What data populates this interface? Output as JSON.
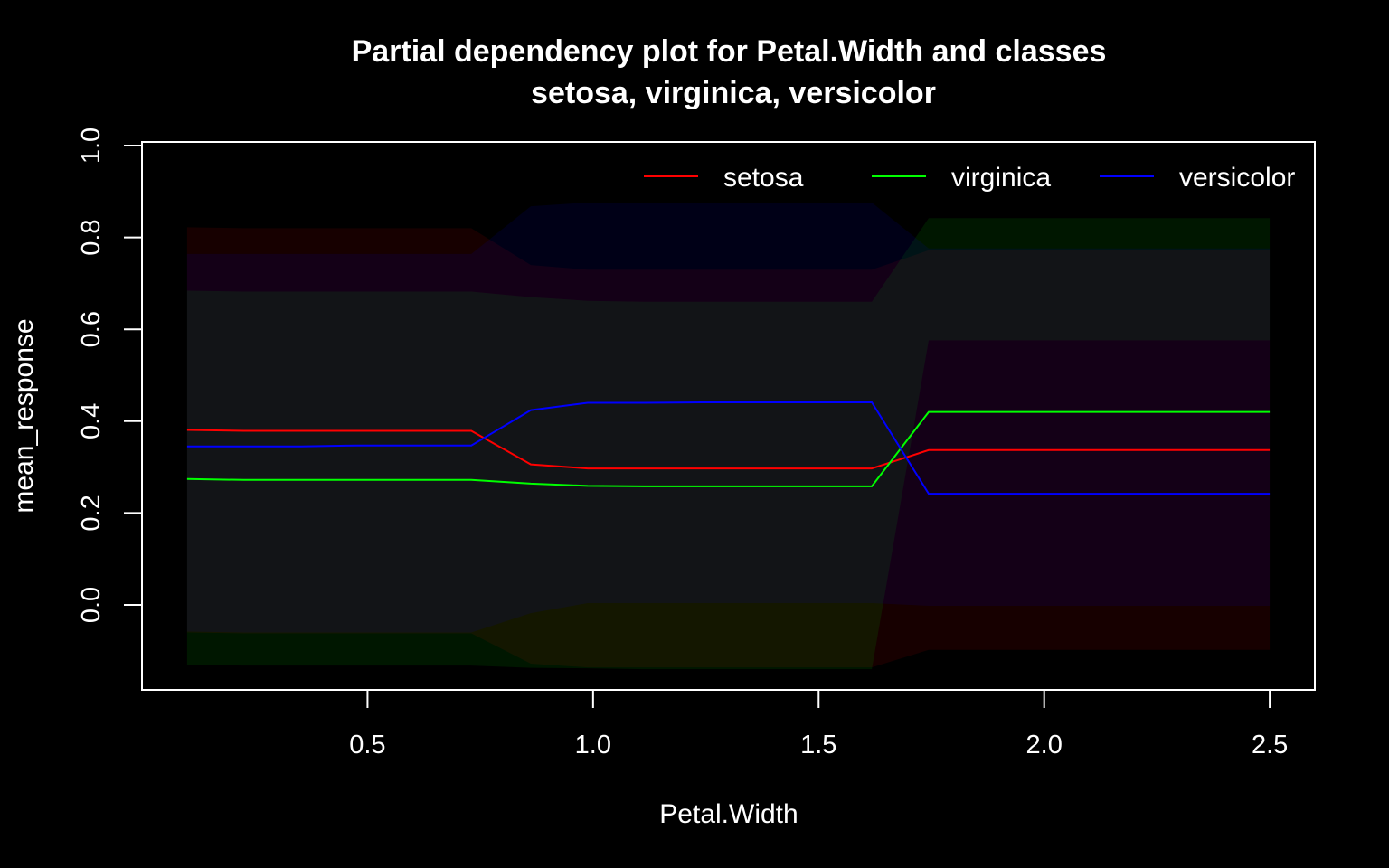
{
  "chart_data": {
    "type": "line",
    "title_line1": "Partial dependency plot for Petal.Width and classes",
    "title_line2": "setosa, virginica, versicolor",
    "xlabel": "Petal.Width",
    "ylabel": "mean_response",
    "xlim": [
      0.0,
      2.6
    ],
    "ylim": [
      -0.18,
      1.0
    ],
    "x_ticks": [
      0.5,
      1.0,
      1.5,
      2.0,
      2.5
    ],
    "x_tick_labels": [
      "0.5",
      "1.0",
      "1.5",
      "2.0",
      "2.5"
    ],
    "y_ticks": [
      0.0,
      0.2,
      0.4,
      0.6,
      0.8,
      1.0
    ],
    "y_tick_labels": [
      "0.0",
      "0.2",
      "0.4",
      "0.6",
      "0.8",
      "1.0"
    ],
    "background": "#000000",
    "foreground": "#ffffff",
    "legend_position": "top-right",
    "x": [
      0.1,
      0.226,
      0.352,
      0.478,
      0.604,
      0.73,
      0.862,
      0.988,
      1.114,
      1.24,
      1.366,
      1.492,
      1.618,
      1.744,
      1.87,
      1.996,
      2.122,
      2.248,
      2.374,
      2.5
    ],
    "series": [
      {
        "name": "setosa",
        "color": "#ff0000",
        "band_color": "#ff0000",
        "values": [
          0.381,
          0.379,
          0.379,
          0.379,
          0.379,
          0.379,
          0.306,
          0.297,
          0.297,
          0.297,
          0.297,
          0.297,
          0.297,
          0.337,
          0.337,
          0.337,
          0.337,
          0.337,
          0.337,
          0.337
        ],
        "lower": [
          -0.06,
          -0.062,
          -0.062,
          -0.062,
          -0.062,
          -0.062,
          -0.128,
          -0.136,
          -0.136,
          -0.136,
          -0.136,
          -0.136,
          -0.136,
          -0.098,
          -0.098,
          -0.098,
          -0.098,
          -0.098,
          -0.098,
          -0.098
        ],
        "upper": [
          0.822,
          0.82,
          0.82,
          0.82,
          0.82,
          0.82,
          0.74,
          0.73,
          0.73,
          0.73,
          0.73,
          0.73,
          0.73,
          0.772,
          0.772,
          0.772,
          0.772,
          0.772,
          0.772,
          0.772
        ]
      },
      {
        "name": "virginica",
        "color": "#00ff00",
        "band_color": "#00ff00",
        "values": [
          0.274,
          0.272,
          0.272,
          0.272,
          0.272,
          0.272,
          0.264,
          0.259,
          0.258,
          0.258,
          0.258,
          0.258,
          0.258,
          0.42,
          0.42,
          0.42,
          0.42,
          0.42,
          0.42,
          0.42
        ],
        "lower": [
          -0.13,
          -0.132,
          -0.132,
          -0.132,
          -0.132,
          -0.132,
          -0.137,
          -0.138,
          -0.14,
          -0.14,
          -0.14,
          -0.14,
          -0.14,
          0.576,
          0.576,
          0.576,
          0.576,
          0.576,
          0.576,
          0.576
        ],
        "upper": [
          0.684,
          0.682,
          0.682,
          0.682,
          0.682,
          0.682,
          0.67,
          0.662,
          0.66,
          0.66,
          0.66,
          0.66,
          0.66,
          0.842,
          0.842,
          0.842,
          0.842,
          0.842,
          0.842,
          0.842
        ]
      },
      {
        "name": "versicolor",
        "color": "#0000ff",
        "band_color": "#0000ff",
        "values": [
          0.345,
          0.345,
          0.345,
          0.347,
          0.347,
          0.347,
          0.424,
          0.44,
          0.44,
          0.441,
          0.441,
          0.441,
          0.441,
          0.242,
          0.242,
          0.242,
          0.242,
          0.242,
          0.242,
          0.242
        ],
        "lower": [
          -0.058,
          -0.06,
          -0.06,
          -0.06,
          -0.06,
          -0.06,
          -0.018,
          0.004,
          0.004,
          0.004,
          0.004,
          0.004,
          0.004,
          -0.002,
          -0.002,
          -0.002,
          -0.002,
          -0.002,
          -0.002,
          -0.002
        ],
        "upper": [
          0.764,
          0.764,
          0.764,
          0.764,
          0.764,
          0.764,
          0.868,
          0.876,
          0.876,
          0.876,
          0.876,
          0.876,
          0.876,
          0.776,
          0.776,
          0.776,
          0.776,
          0.776,
          0.776,
          0.776
        ]
      }
    ]
  }
}
